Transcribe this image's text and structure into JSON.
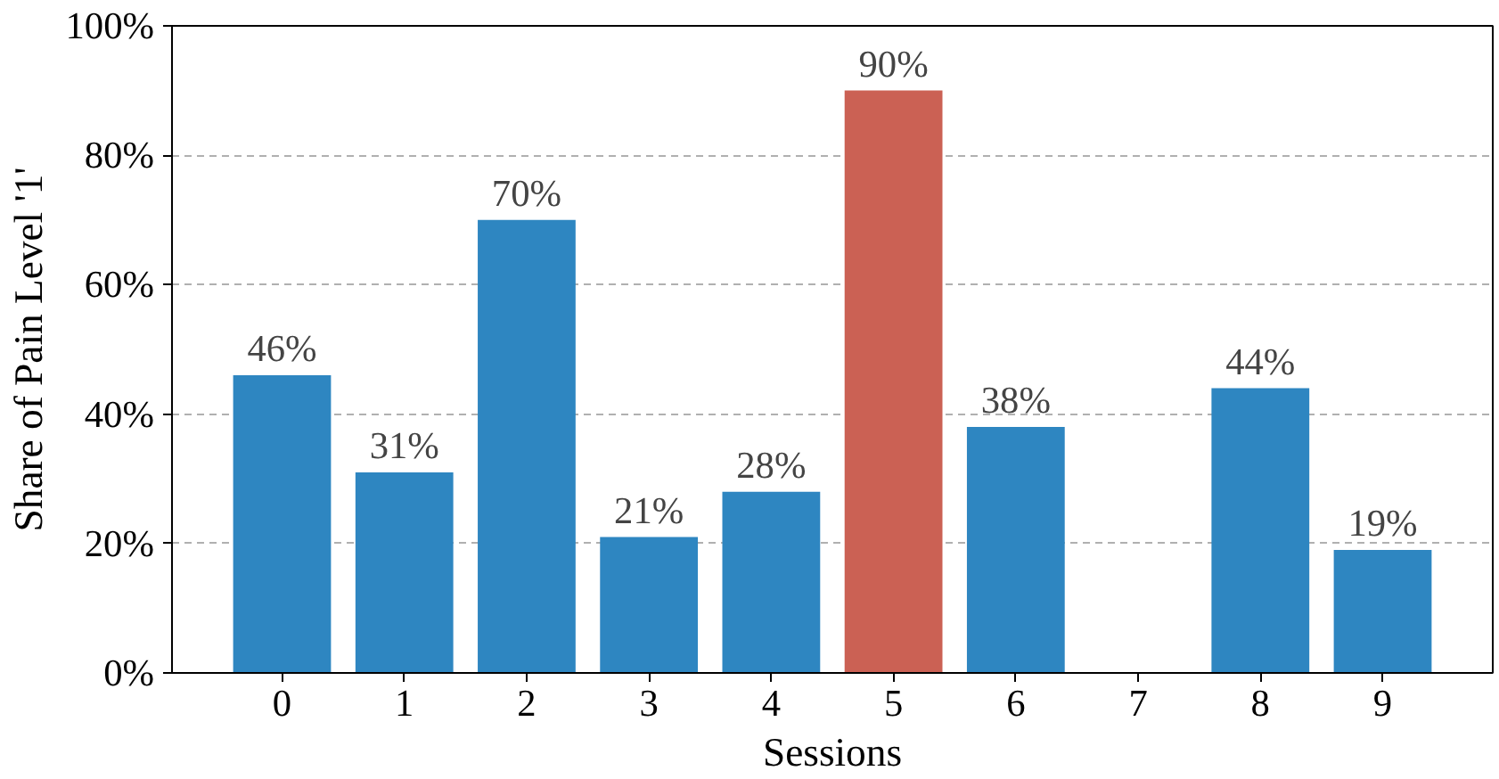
{
  "chart_data": {
    "type": "bar",
    "xlabel": "Sessions",
    "ylabel": "Share of Pain Level '1'",
    "categories": [
      "0",
      "1",
      "2",
      "3",
      "4",
      "5",
      "6",
      "7",
      "8",
      "9"
    ],
    "values": [
      46,
      31,
      70,
      21,
      28,
      90,
      38,
      null,
      44,
      19
    ],
    "colors": [
      "#2e86c1",
      "#2e86c1",
      "#2e86c1",
      "#2e86c1",
      "#2e86c1",
      "#cb6154",
      "#2e86c1",
      "#2e86c1",
      "#2e86c1",
      "#2e86c1"
    ],
    "value_labels": [
      "46%",
      "31%",
      "70%",
      "21%",
      "28%",
      "90%",
      "38%",
      null,
      "44%",
      "19%"
    ],
    "ylim": [
      0,
      100
    ],
    "yticks": [
      {
        "value": 0,
        "label": "0%"
      },
      {
        "value": 20,
        "label": "20%"
      },
      {
        "value": 40,
        "label": "40%"
      },
      {
        "value": 60,
        "label": "60%"
      },
      {
        "value": 80,
        "label": "80%"
      },
      {
        "value": 100,
        "label": "100%"
      }
    ],
    "grid": "y"
  }
}
